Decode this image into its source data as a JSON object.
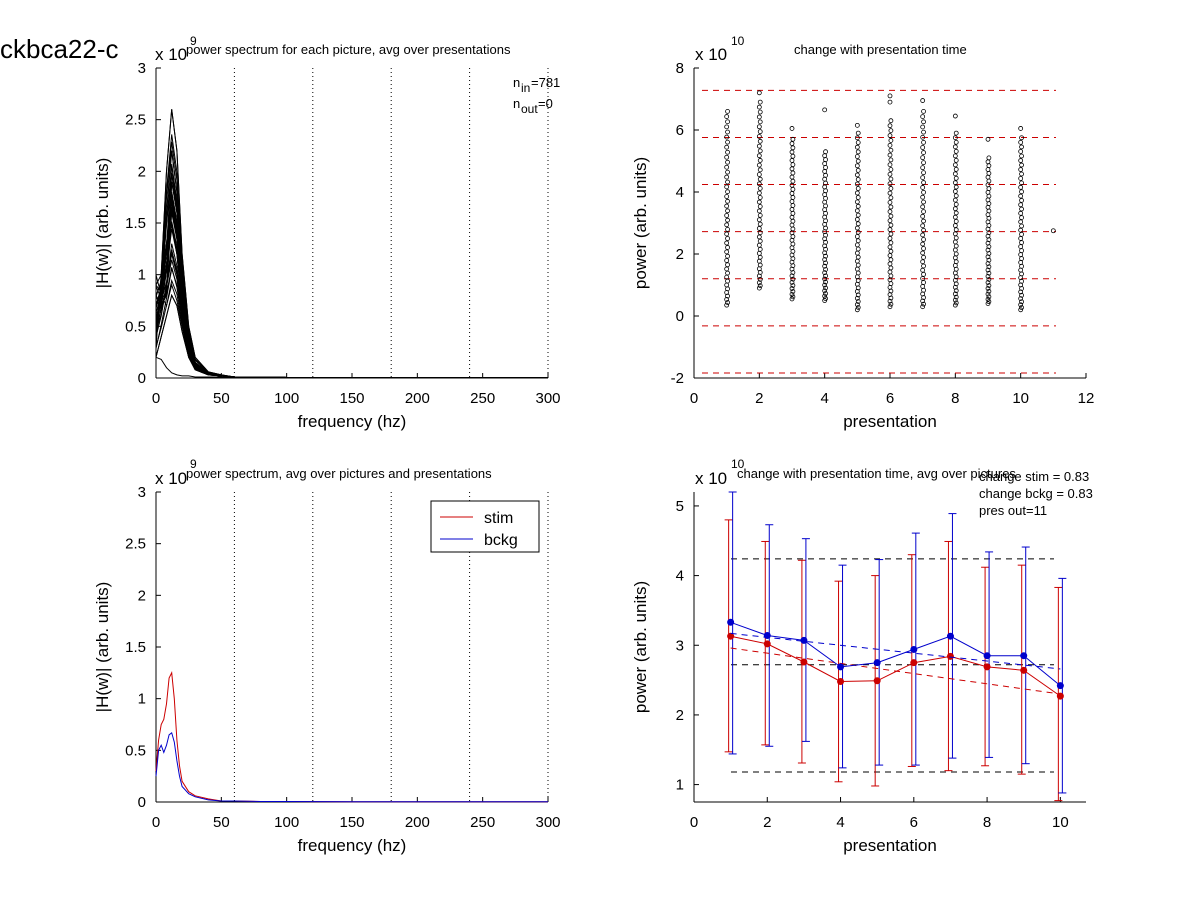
{
  "figure_title": "ckbca22-c",
  "chart_data": [
    {
      "id": "tl",
      "type": "line",
      "title": "power spectrum for each picture, avg over presentations",
      "xlabel": "frequency (hz)",
      "ylabel": "|H(w)| (arb. units)",
      "y_multiplier": {
        "base": "x 10",
        "exponent": "9"
      },
      "xlim": [
        0,
        300
      ],
      "ylim": [
        0,
        3
      ],
      "xticks": [
        0,
        50,
        100,
        150,
        200,
        250,
        300
      ],
      "yticks": [
        0,
        0.5,
        1,
        1.5,
        2,
        2.5,
        3
      ],
      "xtick_labels": [
        "0",
        "50",
        "100",
        "150",
        "200",
        "250",
        "300"
      ],
      "ytick_labels": [
        "0",
        "0.5",
        "1",
        "1.5",
        "2",
        "2.5",
        "3"
      ],
      "vlines": [
        60,
        120,
        180,
        240,
        300
      ],
      "annotations": [
        {
          "text": "n",
          "sub": "in",
          "rest": "=781"
        },
        {
          "text": "n",
          "sub": "out",
          "rest": "=0"
        }
      ],
      "series": [
        {
          "x": [
            0,
            4,
            8,
            12,
            16,
            20,
            25,
            30,
            40,
            50,
            60,
            80,
            100,
            150,
            200,
            250,
            300
          ],
          "values": [
            0.3,
            1.0,
            2.0,
            2.6,
            2.2,
            1.2,
            0.5,
            0.2,
            0.06,
            0.03,
            0.01,
            0.01,
            0.005,
            0.003,
            0.002,
            0.002,
            0.002
          ]
        },
        {
          "x": [
            0,
            4,
            8,
            12,
            16,
            20,
            25,
            30,
            40,
            50,
            60,
            80,
            100,
            150,
            200,
            250,
            300
          ],
          "values": [
            0.5,
            0.9,
            1.6,
            2.2,
            1.8,
            1.0,
            0.4,
            0.15,
            0.05,
            0.02,
            0.01,
            0.01,
            0.005,
            0.003,
            0.002,
            0.002,
            0.002
          ]
        },
        {
          "x": [
            0,
            4,
            8,
            12,
            16,
            20,
            25,
            30,
            40,
            50,
            60,
            80,
            100,
            150,
            200,
            250,
            300
          ],
          "values": [
            0.9,
            1.0,
            1.3,
            1.8,
            1.5,
            0.9,
            0.35,
            0.12,
            0.04,
            0.02,
            0.01,
            0.01,
            0.005,
            0.003,
            0.002,
            0.002,
            0.002
          ]
        },
        {
          "x": [
            0,
            4,
            8,
            12,
            16,
            20,
            25,
            30,
            40,
            50,
            60,
            80,
            100,
            150,
            200,
            250,
            300
          ],
          "values": [
            0.6,
            0.7,
            1.1,
            1.5,
            1.2,
            0.7,
            0.3,
            0.1,
            0.04,
            0.02,
            0.01,
            0.01,
            0.005,
            0.003,
            0.002,
            0.002,
            0.002
          ]
        },
        {
          "x": [
            0,
            4,
            8,
            12,
            16,
            20,
            25,
            30,
            40,
            50,
            60,
            80,
            100,
            150,
            200,
            250,
            300
          ],
          "values": [
            0.4,
            0.6,
            0.9,
            1.2,
            1.0,
            0.6,
            0.25,
            0.1,
            0.03,
            0.02,
            0.01,
            0.01,
            0.005,
            0.003,
            0.002,
            0.002,
            0.002
          ]
        },
        {
          "x": [
            0,
            4,
            8,
            12,
            16,
            20,
            25,
            30,
            40,
            50,
            60,
            80,
            100,
            150,
            200,
            250,
            300
          ],
          "values": [
            0.2,
            0.4,
            0.6,
            0.8,
            0.7,
            0.45,
            0.2,
            0.08,
            0.03,
            0.02,
            0.01,
            0.01,
            0.005,
            0.003,
            0.002,
            0.002,
            0.002
          ]
        },
        {
          "x": [
            0,
            4,
            8,
            12,
            16,
            20,
            25,
            30,
            40,
            50,
            60,
            80,
            100,
            150,
            200,
            250,
            300
          ],
          "values": [
            1.0,
            0.8,
            0.7,
            0.9,
            0.75,
            0.5,
            0.2,
            0.08,
            0.03,
            0.02,
            0.01,
            0.01,
            0.005,
            0.003,
            0.002,
            0.002,
            0.002
          ]
        },
        {
          "x": [
            0,
            4,
            8,
            12,
            16,
            20,
            25,
            30,
            40,
            50,
            60,
            80,
            100,
            150,
            200,
            250,
            300
          ],
          "values": [
            0.8,
            0.7,
            0.8,
            1.9,
            1.6,
            1.1,
            0.45,
            0.15,
            0.05,
            0.02,
            0.01,
            0.01,
            0.005,
            0.003,
            0.002,
            0.002,
            0.002
          ]
        },
        {
          "x": [
            0,
            4,
            8,
            12,
            16,
            20,
            25,
            30,
            40,
            50,
            60,
            80,
            100,
            150,
            200,
            250,
            300
          ],
          "values": [
            0.5,
            0.8,
            1.2,
            1.7,
            1.4,
            0.8,
            0.3,
            0.1,
            0.04,
            0.02,
            0.01,
            0.01,
            0.005,
            0.003,
            0.002,
            0.002,
            0.002
          ]
        },
        {
          "x": [
            0,
            4,
            8,
            12,
            16,
            20,
            25,
            30,
            40,
            50,
            60,
            80,
            100,
            150,
            200,
            250,
            300
          ],
          "values": [
            0.2,
            0.18,
            0.1,
            0.05,
            0.03,
            0.02,
            0.02,
            0.01,
            0.01,
            0.01,
            0.005,
            0.005,
            0.003,
            0.002,
            0.002,
            0.002,
            0.002
          ]
        }
      ]
    },
    {
      "id": "tr",
      "type": "scatter",
      "title": "change with presentation time",
      "xlabel": "presentation",
      "ylabel": "power (arb. units)",
      "y_multiplier": {
        "base": "x 10",
        "exponent": "10"
      },
      "xlim": [
        0,
        12
      ],
      "ylim": [
        -2,
        8
      ],
      "xticks": [
        0,
        2,
        4,
        6,
        8,
        10,
        12
      ],
      "yticks": [
        -2,
        0,
        2,
        4,
        6,
        8
      ],
      "xtick_labels": [
        "0",
        "2",
        "4",
        "6",
        "8",
        "10",
        "12"
      ],
      "ytick_labels": [
        "-2",
        "0",
        "2",
        "4",
        "6",
        "8"
      ],
      "hlines": [
        7.28,
        5.76,
        4.24,
        2.72,
        1.2,
        -0.32,
        -1.84
      ],
      "columns": [
        {
          "x": 1,
          "min": 0.35,
          "max": 6.6,
          "extras": []
        },
        {
          "x": 2,
          "min": 0.9,
          "max": 6.9,
          "extras": [
            7.2
          ]
        },
        {
          "x": 3,
          "min": 0.55,
          "max": 5.7,
          "extras": [
            6.05
          ]
        },
        {
          "x": 4,
          "min": 0.5,
          "max": 5.3,
          "extras": [
            6.65
          ]
        },
        {
          "x": 5,
          "min": 0.2,
          "max": 5.9,
          "extras": [
            6.15
          ]
        },
        {
          "x": 6,
          "min": 0.3,
          "max": 6.3,
          "extras": [
            6.9,
            7.1
          ]
        },
        {
          "x": 7,
          "min": 0.3,
          "max": 6.6,
          "extras": [
            6.95
          ]
        },
        {
          "x": 8,
          "min": 0.35,
          "max": 5.9,
          "extras": [
            6.45
          ]
        },
        {
          "x": 9,
          "min": 0.4,
          "max": 5.1,
          "extras": [
            5.7
          ]
        },
        {
          "x": 10,
          "min": 0.2,
          "max": 5.75,
          "extras": [
            6.05
          ]
        },
        {
          "x": 11,
          "min": 2.75,
          "max": 2.75,
          "extras": []
        }
      ]
    },
    {
      "id": "bl",
      "type": "line",
      "title": "power spectrum, avg over pictures and presentations",
      "xlabel": "frequency (hz)",
      "ylabel": "|H(w)| (arb. units)",
      "y_multiplier": {
        "base": "x 10",
        "exponent": "9"
      },
      "xlim": [
        0,
        300
      ],
      "ylim": [
        0,
        3
      ],
      "xticks": [
        0,
        50,
        100,
        150,
        200,
        250,
        300
      ],
      "yticks": [
        0,
        0.5,
        1,
        1.5,
        2,
        2.5,
        3
      ],
      "xtick_labels": [
        "0",
        "50",
        "100",
        "150",
        "200",
        "250",
        "300"
      ],
      "ytick_labels": [
        "0",
        "0.5",
        "1",
        "1.5",
        "2",
        "2.5",
        "3"
      ],
      "vlines": [
        60,
        120,
        180,
        240,
        300
      ],
      "legend": "top-right",
      "series": [
        {
          "name": "stim",
          "color": "#cc0000",
          "x": [
            0,
            2,
            4,
            6,
            8,
            10,
            12,
            14,
            16,
            18,
            20,
            25,
            30,
            40,
            50,
            60,
            80,
            100,
            150,
            200,
            250,
            300
          ],
          "values": [
            0.3,
            0.6,
            0.75,
            0.8,
            0.95,
            1.2,
            1.25,
            1.0,
            0.6,
            0.35,
            0.2,
            0.1,
            0.06,
            0.03,
            0.01,
            0.01,
            0.005,
            0.005,
            0.003,
            0.003,
            0.003,
            0.003
          ]
        },
        {
          "name": "bckg",
          "color": "#0000cc",
          "x": [
            0,
            2,
            4,
            6,
            8,
            10,
            12,
            14,
            16,
            18,
            20,
            25,
            30,
            40,
            50,
            60,
            80,
            100,
            150,
            200,
            250,
            300
          ],
          "values": [
            0.25,
            0.5,
            0.55,
            0.48,
            0.55,
            0.65,
            0.67,
            0.58,
            0.4,
            0.25,
            0.15,
            0.08,
            0.05,
            0.02,
            0.01,
            0.01,
            0.005,
            0.005,
            0.003,
            0.003,
            0.003,
            0.003
          ]
        }
      ]
    },
    {
      "id": "br",
      "type": "line",
      "title": "change with presentation time, avg over pictures",
      "xlabel": "presentation",
      "ylabel": "power (arb. units)",
      "y_multiplier": {
        "base": "x 10",
        "exponent": "10"
      },
      "xlim": [
        0,
        10.7
      ],
      "ylim": [
        0.75,
        5.2
      ],
      "xticks": [
        0,
        2,
        4,
        6,
        8,
        10
      ],
      "yticks": [
        1,
        2,
        3,
        4,
        5
      ],
      "xtick_labels": [
        "0",
        "2",
        "4",
        "6",
        "8",
        "10"
      ],
      "ytick_labels": [
        "1",
        "2",
        "3",
        "4",
        "5"
      ],
      "annotations": [
        "change stim = 0.83",
        "change bckg = 0.83",
        "pres out=11"
      ],
      "hlines": [
        4.24,
        2.72,
        1.18
      ],
      "x": [
        1,
        2,
        3,
        4,
        5,
        6,
        7,
        8,
        9,
        10
      ],
      "series": [
        {
          "name": "stim",
          "color": "#cc0000",
          "values": [
            3.13,
            3.02,
            2.76,
            2.48,
            2.49,
            2.75,
            2.84,
            2.69,
            2.64,
            2.27
          ],
          "err_low": [
            1.47,
            1.57,
            1.31,
            1.04,
            0.98,
            1.26,
            1.2,
            1.27,
            1.15,
            0.77
          ],
          "err_high": [
            4.8,
            4.49,
            4.22,
            3.92,
            4.0,
            4.3,
            4.49,
            4.12,
            4.15,
            3.83
          ],
          "trend": [
            2.96,
            2.3
          ]
        },
        {
          "name": "bckg",
          "color": "#0000cc",
          "values": [
            3.33,
            3.14,
            3.07,
            2.69,
            2.75,
            2.94,
            3.13,
            2.85,
            2.85,
            2.42
          ],
          "err_low": [
            1.44,
            1.55,
            1.62,
            1.24,
            1.28,
            1.28,
            1.38,
            1.39,
            1.3,
            0.88
          ],
          "err_high": [
            5.2,
            4.73,
            4.53,
            4.15,
            4.23,
            4.61,
            4.89,
            4.34,
            4.41,
            3.96
          ],
          "trend": [
            3.17,
            2.66
          ]
        }
      ]
    }
  ]
}
